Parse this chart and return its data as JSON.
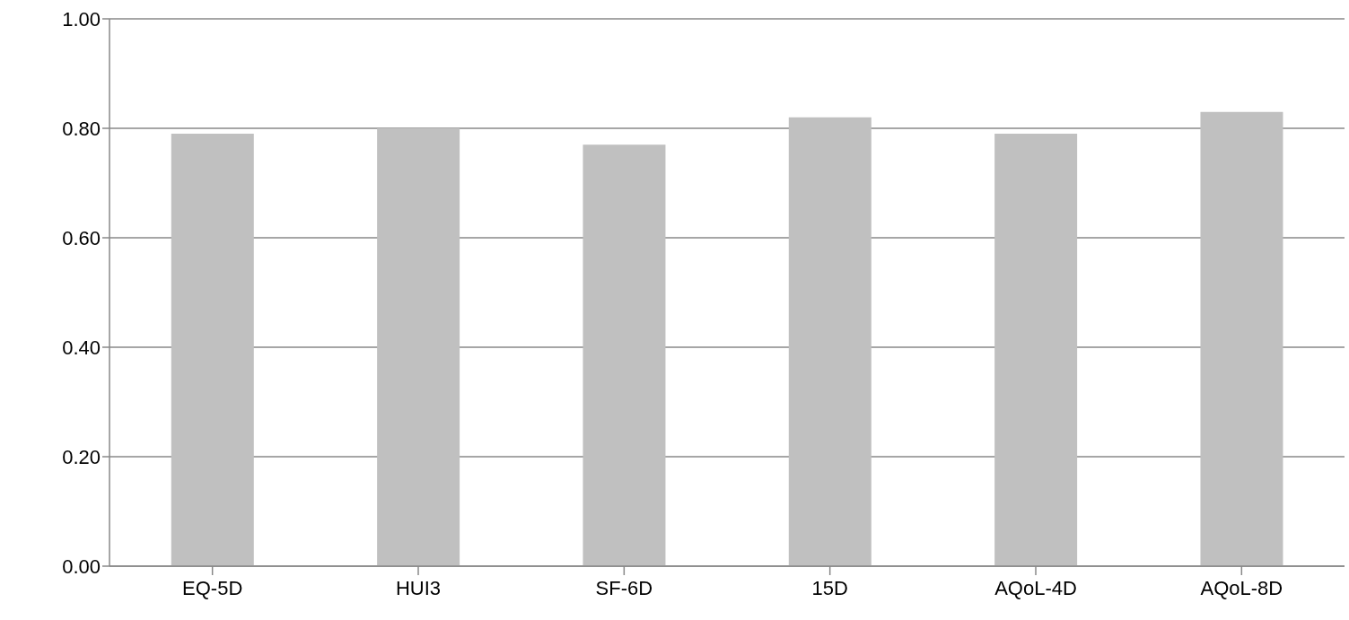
{
  "chart_data": {
    "type": "bar",
    "categories": [
      "EQ-5D",
      "HUI3",
      "SF-6D",
      "15D",
      "AQoL-4D",
      "AQoL-8D"
    ],
    "values": [
      0.79,
      0.8,
      0.77,
      0.82,
      0.79,
      0.83
    ],
    "color": "#c0c0c0",
    "ylim": [
      0,
      1
    ],
    "yticks": [
      {
        "value": 0,
        "label": "0.00"
      },
      {
        "value": 0.2,
        "label": "0.20"
      },
      {
        "value": 0.4,
        "label": "0.40"
      },
      {
        "value": 0.6,
        "label": "0.60"
      },
      {
        "value": 0.8,
        "label": "0.80"
      },
      {
        "value": 1,
        "label": "1.00"
      }
    ],
    "grid": "y"
  }
}
